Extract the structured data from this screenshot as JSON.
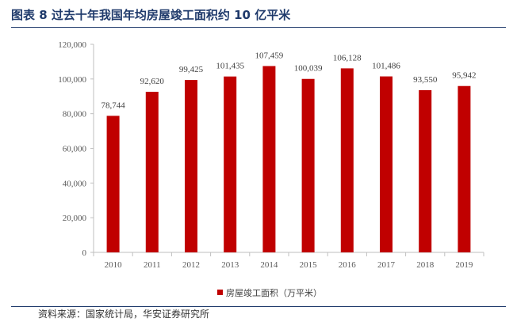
{
  "header": {
    "title": "图表 8  过去十年我国年均房屋竣工面积约 10 亿平米"
  },
  "footer": {
    "source": "资料来源：国家统计局，华安证券研究所"
  },
  "colors": {
    "bar": "#c00000",
    "title": "#1f3a6b"
  },
  "chart_data": {
    "type": "bar",
    "title": "",
    "xlabel": "",
    "ylabel": "",
    "categories": [
      "2010",
      "2011",
      "2012",
      "2013",
      "2014",
      "2015",
      "2016",
      "2017",
      "2018",
      "2019"
    ],
    "series": [
      {
        "name": "房屋竣工面积（万平米）",
        "values": [
          78744,
          92620,
          99425,
          101435,
          107459,
          100039,
          106128,
          101486,
          93550,
          95942
        ],
        "value_labels": [
          "78,744",
          "92,620",
          "99,425",
          "101,435",
          "107,459",
          "100,039",
          "106,128",
          "101,486",
          "93,550",
          "95,942"
        ]
      }
    ],
    "ylim": [
      0,
      120000
    ],
    "yticks": [
      0,
      20000,
      40000,
      60000,
      80000,
      100000,
      120000
    ],
    "ytick_labels": [
      "0",
      "20,000",
      "40,000",
      "60,000",
      "80,000",
      "100,000",
      "120,000"
    ],
    "grid": false,
    "legend": "bottom-center"
  }
}
